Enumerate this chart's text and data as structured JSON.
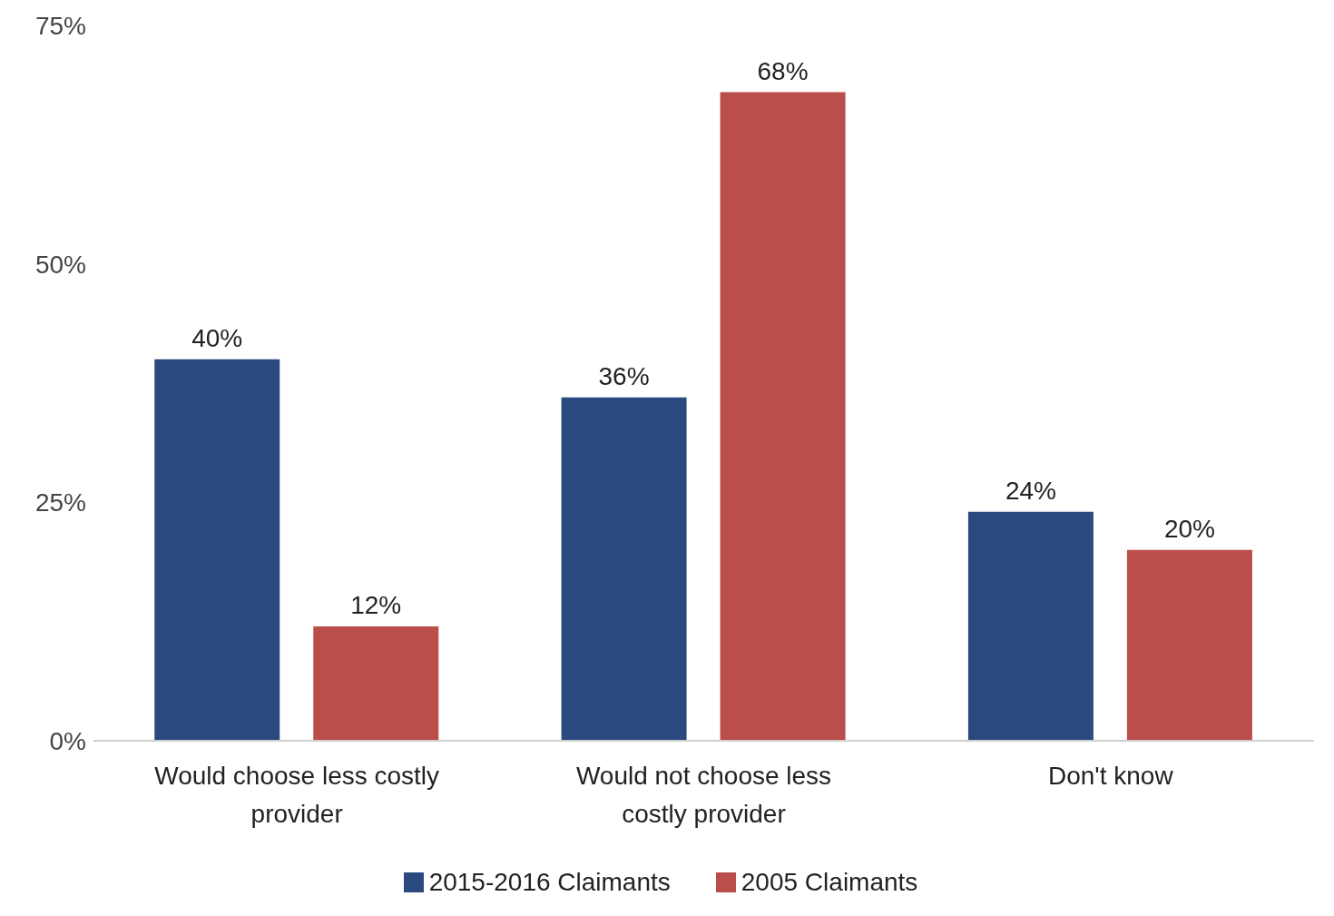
{
  "chart_data": {
    "type": "bar",
    "categories": [
      "Would choose less costly provider",
      "Would not choose less costly provider",
      "Don't know"
    ],
    "series": [
      {
        "name": "2015-2016 Claimants",
        "color": "#2a4a7f",
        "values": [
          40,
          36,
          24
        ],
        "value_labels": [
          "40%",
          "36%",
          "24%"
        ]
      },
      {
        "name": "2005 Claimants",
        "color": "#b94e4a",
        "values": [
          12,
          68,
          20
        ],
        "value_labels": [
          "12%",
          "68%",
          "20%"
        ]
      }
    ],
    "ylim": [
      0,
      75
    ],
    "yticks": [
      {
        "value": 0,
        "label": "0%"
      },
      {
        "value": 25,
        "label": "25%"
      },
      {
        "value": 50,
        "label": "50%"
      },
      {
        "value": 75,
        "label": "75%"
      }
    ],
    "grid": false,
    "legend": "bottom"
  }
}
